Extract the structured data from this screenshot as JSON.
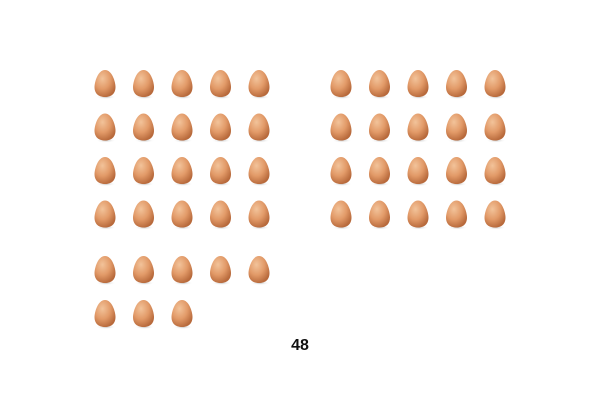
{
  "colors": {
    "egg_light": "#f2c39a",
    "egg_mid": "#e29a68",
    "egg_dark": "#b86a3c",
    "egg_shadow": "#8a8a8a",
    "background": "#ffffff"
  },
  "groups": [
    {
      "id": "group-a",
      "rows": 4,
      "columns": 5,
      "count": 20
    },
    {
      "id": "group-b",
      "rows": 4,
      "columns": 5,
      "count": 20
    },
    {
      "id": "group-c",
      "rows": 2,
      "columns": 5,
      "count": 8
    }
  ],
  "total": {
    "label": "48"
  }
}
